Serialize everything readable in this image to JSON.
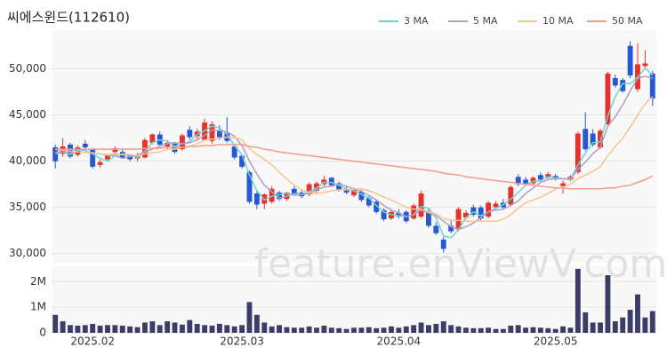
{
  "chart_data": [
    {
      "type": "candlestick",
      "title": "씨에스윈드(112610)",
      "watermark": "feature.enViewV.com",
      "up_color": "#e8312a",
      "down_color": "#2458d4",
      "grid": true,
      "legend": "top-right",
      "ylim": [
        29000,
        54200
      ],
      "yticks": [
        {
          "value": 30000,
          "label": "30,000"
        },
        {
          "value": 35000,
          "label": "35,000"
        },
        {
          "value": 40000,
          "label": "40,000"
        },
        {
          "value": 45000,
          "label": "45,000"
        },
        {
          "value": 50000,
          "label": "50,000"
        }
      ],
      "open": [
        41500,
        40800,
        41800,
        40700,
        41900,
        41300,
        39600,
        40200,
        41000,
        41000,
        40600,
        40300,
        40400,
        42000,
        42900,
        41600,
        41900,
        41300,
        43400,
        42700,
        42300,
        42200,
        43300,
        43000,
        41600,
        40600,
        38800,
        36500,
        35400,
        35600,
        36600,
        35900,
        37000,
        36600,
        36400,
        36800,
        37500,
        38200,
        37600,
        37000,
        36300,
        36700,
        36000,
        35600,
        34700,
        33800,
        34400,
        34500,
        33800,
        34000,
        34500,
        33000,
        31500,
        33000,
        32600,
        33900,
        35000,
        35000,
        34000,
        35000,
        35500,
        35300,
        38300,
        38000,
        37600,
        38500,
        38300,
        38400,
        37300,
        38000,
        38800,
        43500,
        43000,
        41500,
        44000,
        49000,
        48800,
        52500,
        47800,
        50300,
        49500
      ],
      "high": [
        41800,
        42500,
        42000,
        41700,
        42300,
        41400,
        40200,
        40800,
        41600,
        41300,
        40800,
        40900,
        42500,
        43000,
        43200,
        42300,
        42000,
        43000,
        43800,
        43500,
        44600,
        44300,
        43900,
        44800,
        41900,
        40800,
        39000,
        36900,
        36500,
        37300,
        36800,
        36700,
        37300,
        36900,
        37700,
        37800,
        38400,
        38300,
        37800,
        37300,
        37100,
        36900,
        36200,
        35800,
        34900,
        34700,
        34800,
        34700,
        35400,
        36800,
        34800,
        33400,
        31800,
        33600,
        35000,
        34700,
        35300,
        35200,
        35700,
        35700,
        35900,
        37400,
        38600,
        38300,
        38400,
        38800,
        38800,
        38600,
        37900,
        38500,
        43200,
        45300,
        43500,
        43500,
        49700,
        49400,
        49000,
        53000,
        52800,
        52000,
        49800
      ],
      "low": [
        39200,
        40500,
        40300,
        40500,
        41300,
        39200,
        39300,
        40000,
        40800,
        40300,
        40000,
        40000,
        40300,
        41800,
        41600,
        41300,
        40800,
        41100,
        42300,
        42400,
        42200,
        41900,
        42300,
        42000,
        40200,
        39200,
        35400,
        34800,
        34800,
        35400,
        35700,
        35700,
        36300,
        36000,
        36200,
        36600,
        37300,
        37200,
        36700,
        36400,
        36100,
        35600,
        35000,
        34300,
        33500,
        33600,
        33800,
        33300,
        33600,
        33800,
        32800,
        32000,
        30100,
        32200,
        32400,
        33700,
        34000,
        33600,
        33800,
        34800,
        34800,
        35100,
        37300,
        37400,
        37400,
        37800,
        38100,
        37900,
        36500,
        37800,
        38600,
        41100,
        41600,
        41300,
        43800,
        48000,
        47400,
        49000,
        47500,
        50100,
        46000
      ],
      "close": [
        40000,
        41600,
        40500,
        41500,
        41500,
        39400,
        39900,
        40600,
        41400,
        40400,
        40200,
        40700,
        42300,
        42900,
        41800,
        42000,
        41000,
        42800,
        42600,
        43200,
        44200,
        44000,
        42600,
        42200,
        40400,
        39400,
        35600,
        35300,
        36400,
        37000,
        35900,
        36600,
        36500,
        36200,
        37500,
        37600,
        38000,
        37400,
        36900,
        36600,
        36900,
        35800,
        35200,
        34500,
        33700,
        34500,
        34000,
        33500,
        35200,
        36500,
        33000,
        32200,
        30500,
        32400,
        34800,
        34400,
        34200,
        33800,
        35500,
        35400,
        35000,
        37200,
        37500,
        37600,
        38200,
        38000,
        38600,
        38100,
        37600,
        38300,
        43000,
        41300,
        41800,
        43300,
        49500,
        48200,
        47600,
        49300,
        50500,
        50600,
        46800
      ],
      "series": [
        {
          "name": "3 MA",
          "color": "#6fd3cf",
          "values": [
            40800,
            41000,
            40700,
            41200,
            41200,
            40800,
            40300,
            40000,
            40600,
            40800,
            40700,
            40400,
            41100,
            42000,
            42300,
            42200,
            41600,
            41900,
            42100,
            42900,
            43300,
            43800,
            43600,
            42900,
            41700,
            40700,
            38500,
            36800,
            35800,
            36200,
            36400,
            36500,
            36300,
            36400,
            36700,
            37100,
            37700,
            37700,
            37400,
            37000,
            36800,
            36400,
            36000,
            35200,
            34500,
            34200,
            34100,
            34000,
            34200,
            35100,
            34900,
            33900,
            31900,
            31700,
            32600,
            33900,
            34500,
            34100,
            34500,
            34900,
            35300,
            35900,
            36600,
            37400,
            37800,
            37900,
            38300,
            38200,
            38100,
            38000,
            39600,
            40900,
            42000,
            42100,
            44900,
            47000,
            48400,
            48400,
            49100,
            50100,
            49300
          ]
        },
        {
          "name": "5 MA",
          "color": "#b59bc9",
          "values": [
            41000,
            41000,
            40900,
            41000,
            41000,
            40900,
            40800,
            40600,
            40600,
            40300,
            40500,
            40700,
            41000,
            41300,
            41600,
            41900,
            42000,
            41900,
            42000,
            42300,
            42800,
            43400,
            43300,
            43200,
            42700,
            41700,
            40000,
            38600,
            37400,
            36700,
            36000,
            36200,
            36500,
            36400,
            36500,
            36900,
            37200,
            37300,
            37500,
            37300,
            37000,
            36700,
            36300,
            35800,
            35200,
            34700,
            34400,
            34000,
            34200,
            34700,
            34400,
            34100,
            33500,
            32900,
            32600,
            32900,
            33300,
            33900,
            34500,
            34700,
            34800,
            35200,
            35700,
            36500,
            37100,
            37700,
            38000,
            38100,
            38100,
            38100,
            39100,
            39900,
            40800,
            41500,
            43800,
            44800,
            46100,
            47600,
            49000,
            49200,
            49000
          ]
        },
        {
          "name": "10 MA",
          "color": "#f5c48e",
          "values": [
            41300,
            41200,
            41100,
            41000,
            41000,
            40900,
            40800,
            40700,
            40800,
            40700,
            40700,
            40600,
            40800,
            40900,
            41000,
            41300,
            41300,
            41500,
            41600,
            41900,
            42300,
            42400,
            42500,
            42600,
            42600,
            42300,
            41400,
            40700,
            40200,
            39600,
            38800,
            38100,
            37400,
            36900,
            36600,
            36500,
            36600,
            36800,
            36900,
            36900,
            37000,
            37000,
            36800,
            36500,
            36100,
            35800,
            35400,
            35000,
            34800,
            34800,
            34500,
            34300,
            33800,
            33600,
            33600,
            33500,
            33500,
            33500,
            33500,
            33500,
            33700,
            34200,
            34900,
            35500,
            35800,
            36100,
            36500,
            37000,
            37200,
            37500,
            38100,
            38500,
            38900,
            39400,
            40600,
            41600,
            42500,
            43700,
            45000,
            46200,
            47000
          ]
        },
        {
          "name": "50 MA",
          "color": "#f29b85",
          "values": [
            41300,
            41300,
            41300,
            41300,
            41300,
            41300,
            41300,
            41300,
            41300,
            41300,
            41300,
            41300,
            41400,
            41400,
            41400,
            41500,
            41500,
            41500,
            41600,
            41600,
            41700,
            41700,
            41800,
            41800,
            41800,
            41800,
            41600,
            41500,
            41300,
            41200,
            41000,
            40900,
            40800,
            40700,
            40600,
            40500,
            40400,
            40300,
            40200,
            40100,
            40000,
            39900,
            39800,
            39700,
            39600,
            39500,
            39400,
            39300,
            39200,
            39100,
            39000,
            38900,
            38700,
            38600,
            38500,
            38300,
            38200,
            38100,
            38000,
            37900,
            37800,
            37700,
            37600,
            37500,
            37400,
            37300,
            37200,
            37100,
            37100,
            37000,
            37000,
            37000,
            37000,
            37000,
            37100,
            37100,
            37300,
            37400,
            37700,
            38000,
            38400
          ]
        }
      ]
    },
    {
      "type": "bar",
      "color": "#3a3d68",
      "grid": true,
      "ylim": [
        0,
        2600000
      ],
      "yticks": [
        0,
        {
          "value": 1000000,
          "label": "1M"
        },
        {
          "value": 2000000,
          "label": "2M"
        }
      ],
      "categories": [
        null,
        null,
        null,
        null,
        null,
        "2025.02",
        null,
        null,
        null,
        null,
        null,
        null,
        null,
        null,
        null,
        null,
        null,
        null,
        null,
        null,
        null,
        null,
        null,
        null,
        null,
        "2025.03",
        null,
        null,
        null,
        null,
        null,
        null,
        null,
        null,
        null,
        null,
        null,
        null,
        null,
        null,
        null,
        null,
        null,
        null,
        null,
        null,
        "2025.04",
        null,
        null,
        null,
        null,
        null,
        null,
        null,
        null,
        null,
        null,
        null,
        null,
        null,
        null,
        null,
        null,
        null,
        null,
        null,
        null,
        "2025.05",
        null,
        null,
        null,
        null,
        null,
        null,
        null,
        null,
        null,
        null,
        null,
        null,
        null
      ],
      "values": [
        700000,
        450000,
        300000,
        280000,
        300000,
        350000,
        280000,
        300000,
        300000,
        280000,
        250000,
        220000,
        400000,
        450000,
        300000,
        450000,
        400000,
        320000,
        500000,
        350000,
        300000,
        280000,
        350000,
        300000,
        250000,
        300000,
        1200000,
        700000,
        400000,
        250000,
        300000,
        220000,
        200000,
        200000,
        250000,
        200000,
        280000,
        200000,
        180000,
        150000,
        200000,
        200000,
        220000,
        180000,
        200000,
        250000,
        200000,
        250000,
        300000,
        400000,
        300000,
        350000,
        450000,
        300000,
        250000,
        200000,
        180000,
        180000,
        200000,
        150000,
        150000,
        280000,
        300000,
        200000,
        220000,
        200000,
        180000,
        150000,
        250000,
        200000,
        2500000,
        800000,
        400000,
        400000,
        2250000,
        450000,
        600000,
        900000,
        1500000,
        600000,
        850000
      ]
    }
  ]
}
